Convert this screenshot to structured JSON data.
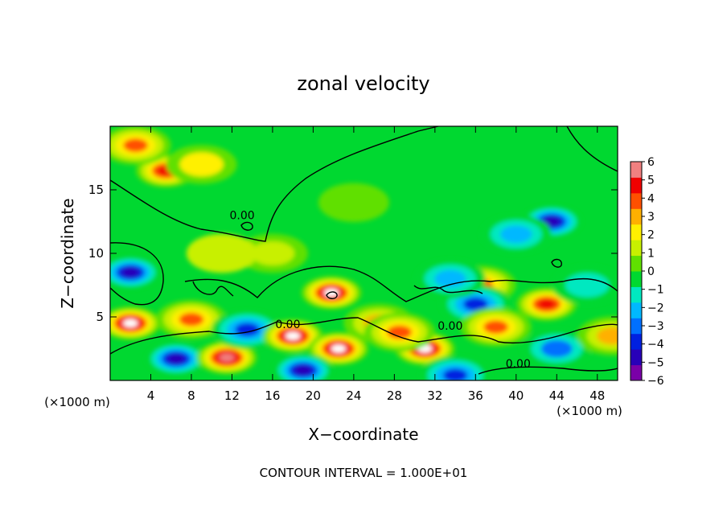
{
  "chart_data": {
    "type": "heatmap",
    "title": "zonal velocity",
    "xlabel": "X−coordinate",
    "ylabel": "Z−coordinate",
    "x_unit_left": "(×1000 m)",
    "x_unit_right": "(×1000 m)",
    "xlim": [
      0,
      50
    ],
    "ylim": [
      0,
      20
    ],
    "x_ticks": [
      4,
      8,
      12,
      16,
      20,
      24,
      28,
      32,
      36,
      40,
      44,
      48
    ],
    "y_ticks": [
      5,
      10,
      15
    ],
    "footer": "CONTOUR INTERVAL = 1.000E+01",
    "colorbar": {
      "range": [
        -6,
        6
      ],
      "ticks": [
        6,
        5,
        4,
        3,
        2,
        1,
        0,
        -1,
        -2,
        -3,
        -4,
        -5,
        -6
      ],
      "tick_labels": [
        "6",
        "5",
        "4",
        "3",
        "2",
        "1",
        "0",
        "−1",
        "−2",
        "−3",
        "−4",
        "−5",
        "−6"
      ],
      "colors": [
        "#7a00a8",
        "#2800b8",
        "#0020e0",
        "#0070ff",
        "#00b8ff",
        "#00e8c0",
        "#00d830",
        "#60e000",
        "#c8f000",
        "#fff000",
        "#ffb000",
        "#ff5000",
        "#f00000",
        "#f08080"
      ]
    },
    "contour_labels": [
      {
        "text": "0.00",
        "x": 13.0,
        "y": 12.7
      },
      {
        "text": "0.00",
        "x": 17.5,
        "y": 4.1
      },
      {
        "text": "0.00",
        "x": 33.5,
        "y": 4.0
      },
      {
        "text": "0.00",
        "x": 40.2,
        "y": 1.0
      }
    ],
    "field_features": [
      {
        "x": 5.5,
        "y": 16.5,
        "value": 5.0
      },
      {
        "x": 2.5,
        "y": 18.5,
        "value": 3.5
      },
      {
        "x": 9.0,
        "y": 17.0,
        "value": 2.0
      },
      {
        "x": 24.0,
        "y": 14.0,
        "value": 0.4
      },
      {
        "x": 43.5,
        "y": 12.5,
        "value": -5.0
      },
      {
        "x": 40.0,
        "y": 11.5,
        "value": -2.5
      },
      {
        "x": 2.0,
        "y": 8.5,
        "value": -5.0
      },
      {
        "x": 2.0,
        "y": 4.5,
        "value": 6.0
      },
      {
        "x": 8.0,
        "y": 4.8,
        "value": 3.5
      },
      {
        "x": 6.5,
        "y": 1.7,
        "value": -5.0
      },
      {
        "x": 11.5,
        "y": 1.8,
        "value": 5.5
      },
      {
        "x": 13.5,
        "y": 4.0,
        "value": -4.0
      },
      {
        "x": 18.0,
        "y": 3.5,
        "value": 6.0
      },
      {
        "x": 21.8,
        "y": 6.9,
        "value": 6.0
      },
      {
        "x": 22.5,
        "y": 2.5,
        "value": 6.0
      },
      {
        "x": 19.0,
        "y": 0.8,
        "value": -5.0
      },
      {
        "x": 31.0,
        "y": 2.5,
        "value": 6.0
      },
      {
        "x": 34.0,
        "y": 0.4,
        "value": -4.0
      },
      {
        "x": 36.5,
        "y": 7.5,
        "value": 4.0
      },
      {
        "x": 36.0,
        "y": 6.0,
        "value": -3.5
      },
      {
        "x": 38.0,
        "y": 4.2,
        "value": 4.0
      },
      {
        "x": 43.0,
        "y": 6.0,
        "value": 5.0
      },
      {
        "x": 44.0,
        "y": 2.5,
        "value": -3.0
      },
      {
        "x": 49.5,
        "y": 3.5,
        "value": 3.0
      },
      {
        "x": 26.5,
        "y": 4.5,
        "value": 3.0
      },
      {
        "x": 28.5,
        "y": 3.8,
        "value": 4.0
      },
      {
        "x": 33.5,
        "y": 8.0,
        "value": -2.5
      },
      {
        "x": 47.0,
        "y": 7.5,
        "value": -1.5
      },
      {
        "x": 16.0,
        "y": 10.0,
        "value": 1.5
      },
      {
        "x": 11.0,
        "y": 10.0,
        "value": 1.0
      }
    ]
  }
}
